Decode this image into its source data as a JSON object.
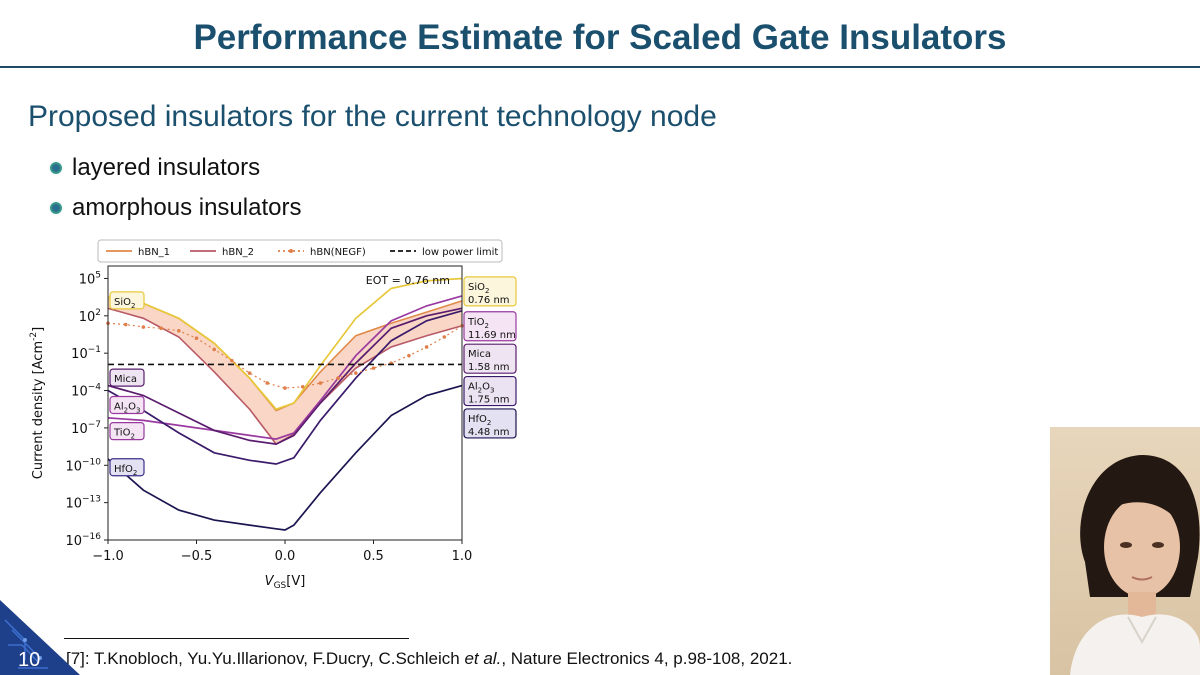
{
  "slide": {
    "title": "Performance Estimate for Scaled Gate Insulators",
    "subtitle": "Proposed insulators for the current technology node",
    "bullets": [
      "layered insulators",
      "amorphous insulators"
    ],
    "page_number": "10",
    "footnote_prefix": "[7]: T.Knobloch, Yu.Yu.Illarionov, F.Ducry, C.Schleich ",
    "footnote_etal": "et al.",
    "footnote_suffix": ", Nature Electronics 4, p.98-108, 2021."
  },
  "colors": {
    "title": "#1a4f6e",
    "bullet": "#2a6f8f",
    "hBN_1": "#e08a4a",
    "hBN_2": "#b85a66",
    "hBN_NEGF": "#e07f4a",
    "band": "#f7c8b3",
    "SiO2": "#e8c83a",
    "TiO2": "#9a3aa0",
    "Mica": "#5a1d6e",
    "Al2O3": "#3a1a6a",
    "HfO2": "#1a1450"
  },
  "chart_data": {
    "type": "line",
    "xlabel": "V_GS[V]",
    "ylabel": "Current density [Acm^-2]",
    "y_scale": "log",
    "xlim": [
      -1.0,
      1.0
    ],
    "ylim_exp": [
      -16,
      6
    ],
    "x_ticks": [
      "−1.0",
      "−0.5",
      "0.0",
      "0.5",
      "1.0"
    ],
    "y_ticks": [
      {
        "exp": 5,
        "label": "10^5"
      },
      {
        "exp": 2,
        "label": "10^2"
      },
      {
        "exp": -1,
        "label": "10^−1"
      },
      {
        "exp": -4,
        "label": "10^−4"
      },
      {
        "exp": -7,
        "label": "10^−7"
      },
      {
        "exp": -10,
        "label": "10^−10"
      },
      {
        "exp": -13,
        "label": "10^−13"
      },
      {
        "exp": -16,
        "label": "10^−16"
      }
    ],
    "annotation": "EOT = 0.76 nm",
    "legend": [
      {
        "name": "hBN_1",
        "style": "solid",
        "color": "#e08a4a"
      },
      {
        "name": "hBN_2",
        "style": "solid",
        "color": "#b85a66"
      },
      {
        "name": "hBN(NEGF)",
        "style": "dotted",
        "color": "#e07f4a"
      },
      {
        "name": "low power limit",
        "style": "dashed",
        "color": "#111111"
      }
    ],
    "low_power_limit_exp": -1.9,
    "left_labels": [
      {
        "name": "SiO2",
        "sub": "2",
        "base": "SiO",
        "tail": "",
        "exp": 3.2,
        "color": "#e8c83a",
        "fill": "#fbf6dc"
      },
      {
        "name": "Mica",
        "base": "Mica",
        "sub": "",
        "tail": "",
        "exp": -3.0,
        "color": "#5a1d6e",
        "fill": "#efe4f2"
      },
      {
        "name": "Al2O3",
        "base": "Al",
        "sub": "2",
        "tail": "O",
        "sub2": "3",
        "exp": -5.2,
        "color": "#9a3aa0",
        "fill": "#f4e4f4"
      },
      {
        "name": "TiO2",
        "base": "TiO",
        "sub": "2",
        "tail": "",
        "exp": -7.3,
        "color": "#9a3aa0",
        "fill": "#f4e4f4"
      },
      {
        "name": "HfO2",
        "base": "HfO",
        "sub": "2",
        "tail": "",
        "exp": -10.2,
        "color": "#3a2f8a",
        "fill": "#e4e2f2"
      }
    ],
    "right_labels": [
      {
        "name": "SiO2",
        "base": "SiO",
        "sub": "2",
        "tail": "",
        "thickness": "0.76 nm",
        "exp": 4.0,
        "color": "#e8c83a",
        "fill": "#fbf6dc"
      },
      {
        "name": "TiO2",
        "base": "TiO",
        "sub": "2",
        "tail": "",
        "thickness": "11.69 nm",
        "exp": 1.2,
        "color": "#9a3aa0",
        "fill": "#f4e4f4"
      },
      {
        "name": "Mica",
        "base": "Mica",
        "sub": "",
        "tail": "",
        "thickness": "1.58 nm",
        "exp": -1.4,
        "color": "#5a1d6e",
        "fill": "#efe4f2"
      },
      {
        "name": "Al2O3",
        "base": "Al",
        "sub": "2",
        "tail": "O",
        "sub2": "3",
        "thickness": "1.75 nm",
        "exp": -4.0,
        "color": "#3a1a6a",
        "fill": "#ebe2f2"
      },
      {
        "name": "HfO2",
        "base": "HfO",
        "sub": "2",
        "tail": "",
        "thickness": "4.48 nm",
        "exp": -6.6,
        "color": "#1a1450",
        "fill": "#e4e2f2"
      }
    ],
    "band": {
      "x": [
        -1.0,
        -0.8,
        -0.6,
        -0.4,
        -0.2,
        -0.05,
        0.05,
        0.2,
        0.4,
        0.6,
        0.8,
        1.0
      ],
      "upper_exp": [
        3.5,
        3.0,
        1.8,
        -0.2,
        -3.0,
        -5.6,
        -5.0,
        -2.5,
        0.4,
        1.4,
        2.3,
        3.2
      ],
      "lower_exp": [
        2.6,
        1.8,
        0.3,
        -2.5,
        -5.5,
        -8.3,
        -7.5,
        -5.0,
        -2.2,
        -0.5,
        0.4,
        1.2
      ]
    },
    "series": [
      {
        "name": "SiO2",
        "color": "#e8c83a",
        "x": [
          -1.0,
          -0.8,
          -0.6,
          -0.4,
          -0.2,
          -0.05,
          0.05,
          0.2,
          0.4,
          0.6,
          0.8,
          1.0
        ],
        "y_exp": [
          3.5,
          3.0,
          1.8,
          -0.2,
          -3.0,
          -5.5,
          -5.0,
          -2.0,
          1.8,
          4.2,
          4.8,
          5.0
        ]
      },
      {
        "name": "TiO2",
        "color": "#9a3aa0",
        "x": [
          -1.0,
          -0.8,
          -0.6,
          -0.4,
          -0.2,
          -0.05,
          0.05,
          0.2,
          0.4,
          0.6,
          0.8,
          1.0
        ],
        "y_exp": [
          -6.2,
          -6.4,
          -6.8,
          -7.2,
          -7.6,
          -7.9,
          -7.4,
          -4.8,
          -1.2,
          1.6,
          2.8,
          3.6
        ]
      },
      {
        "name": "Mica",
        "color": "#5a1d6e",
        "x": [
          -1.0,
          -0.8,
          -0.6,
          -0.4,
          -0.2,
          -0.05,
          0.05,
          0.2,
          0.4,
          0.6,
          0.8,
          1.0
        ],
        "y_exp": [
          -3.6,
          -4.4,
          -5.8,
          -7.2,
          -8.0,
          -8.3,
          -7.6,
          -5.0,
          -1.8,
          1.0,
          2.0,
          2.6
        ]
      },
      {
        "name": "Al2O3",
        "color": "#3a1a6a",
        "x": [
          -1.0,
          -0.8,
          -0.6,
          -0.4,
          -0.2,
          -0.05,
          0.05,
          0.2,
          0.4,
          0.6,
          0.8,
          1.0
        ],
        "y_exp": [
          -4.0,
          -5.6,
          -7.4,
          -9.0,
          -9.6,
          -9.9,
          -9.4,
          -6.4,
          -3.0,
          0.0,
          1.6,
          2.4
        ]
      },
      {
        "name": "HfO2",
        "color": "#1a1450",
        "x": [
          -1.0,
          -0.8,
          -0.6,
          -0.4,
          -0.2,
          -0.05,
          0.0,
          0.05,
          0.2,
          0.4,
          0.6,
          0.8,
          1.0
        ],
        "y_exp": [
          -9.5,
          -12.0,
          -13.6,
          -14.4,
          -14.8,
          -15.1,
          -15.2,
          -14.8,
          -12.2,
          -9.0,
          -6.0,
          -4.4,
          -3.6
        ]
      },
      {
        "name": "hBN(NEGF)",
        "color": "#e07f4a",
        "dotted": true,
        "x": [
          -1.0,
          -0.9,
          -0.8,
          -0.7,
          -0.6,
          -0.5,
          -0.4,
          -0.3,
          -0.2,
          -0.1,
          0.0,
          0.1,
          0.2,
          0.3,
          0.4,
          0.5,
          0.6,
          0.7,
          0.8,
          0.9,
          1.0
        ],
        "y_exp": [
          1.4,
          1.3,
          1.1,
          1.0,
          0.8,
          0.2,
          -0.7,
          -1.6,
          -2.6,
          -3.4,
          -3.8,
          -3.7,
          -3.4,
          -3.0,
          -2.6,
          -2.2,
          -1.8,
          -1.2,
          -0.5,
          0.3,
          1.2
        ]
      }
    ]
  }
}
